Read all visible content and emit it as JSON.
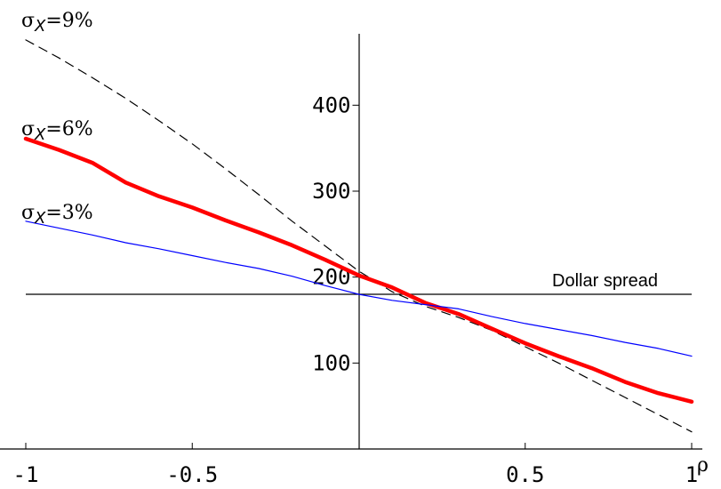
{
  "chart_data": {
    "type": "line",
    "title": "",
    "xlabel": "ρ",
    "ylabel": "",
    "xlim": [
      -1,
      1
    ],
    "ylim": [
      0,
      480
    ],
    "x_ticks": [
      -1,
      -0.5,
      0.5,
      1
    ],
    "x_tick_labels": [
      "-1",
      "-0.5",
      "0.5",
      "1"
    ],
    "y_ticks": [
      100,
      200,
      300,
      400
    ],
    "y_tick_labels": [
      "100",
      "200",
      "300",
      "400"
    ],
    "grid": false,
    "series": [
      {
        "name_prefix": "σ",
        "name_sub": "X",
        "name_suffix": "=9%",
        "color": "#000000",
        "style": "dashed",
        "x": [
          -1,
          -0.9,
          -0.8,
          -0.7,
          -0.6,
          -0.5,
          -0.4,
          -0.3,
          -0.2,
          -0.1,
          0,
          0.1,
          0.2,
          0.3,
          0.4,
          0.5,
          0.6,
          0.7,
          0.8,
          0.9,
          1
        ],
        "y": [
          476,
          455,
          432,
          408,
          382,
          355,
          326,
          296,
          265,
          236,
          207,
          183,
          166,
          153,
          138,
          119,
          100,
          80,
          60,
          40,
          20
        ]
      },
      {
        "name_prefix": "σ",
        "name_sub": "X",
        "name_suffix": "=6%",
        "color": "#ff0000",
        "style": "thick",
        "x": [
          -1,
          -0.9,
          -0.8,
          -0.7,
          -0.6,
          -0.5,
          -0.4,
          -0.3,
          -0.2,
          -0.1,
          0,
          0.1,
          0.2,
          0.3,
          0.4,
          0.5,
          0.6,
          0.7,
          0.8,
          0.9,
          1
        ],
        "y": [
          361,
          348,
          333,
          310,
          294,
          281,
          266,
          252,
          237,
          220,
          202,
          188,
          170,
          157,
          140,
          123,
          108,
          94,
          78,
          65,
          55
        ]
      },
      {
        "name_prefix": "σ",
        "name_sub": "X",
        "name_suffix": "=3%",
        "color": "#0000ff",
        "style": "thin",
        "x": [
          -1,
          -0.9,
          -0.8,
          -0.7,
          -0.6,
          -0.5,
          -0.4,
          -0.3,
          -0.2,
          -0.1,
          0,
          0.1,
          0.2,
          0.3,
          0.4,
          0.5,
          0.6,
          0.7,
          0.8,
          0.9,
          1
        ],
        "y": [
          265,
          257,
          249,
          240,
          233,
          225,
          217,
          210,
          201,
          190,
          180,
          173,
          168,
          163,
          154,
          146,
          139,
          132,
          124,
          117,
          108
        ]
      }
    ],
    "reference_line": {
      "label": "Dollar spread",
      "y": 180,
      "color": "#000000"
    }
  }
}
